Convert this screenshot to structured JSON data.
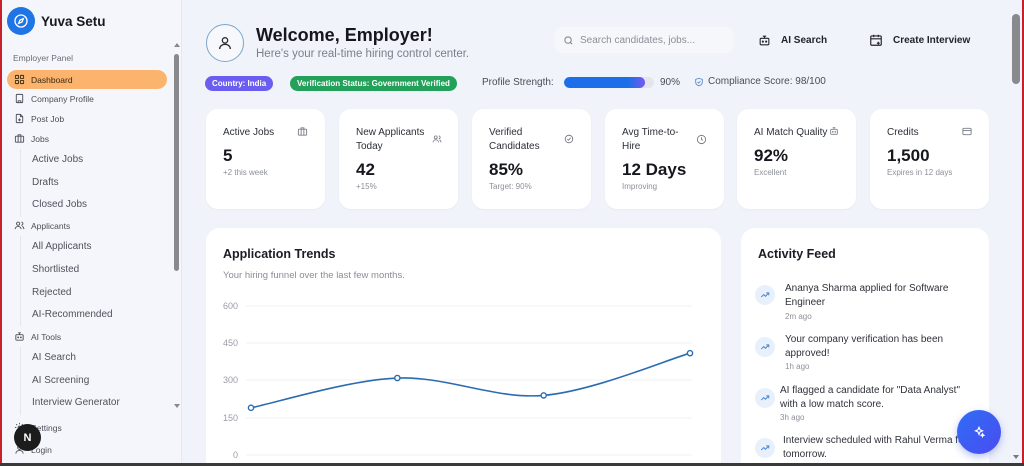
{
  "app": {
    "name": "Yuva Setu",
    "logo_icon": "compass-icon"
  },
  "sidebar": {
    "section_label": "Employer Panel",
    "items": [
      {
        "label": "Dashboard",
        "icon": "grid-icon",
        "active": true
      },
      {
        "label": "Company Profile",
        "icon": "building-icon"
      },
      {
        "label": "Post Job",
        "icon": "file-plus-icon"
      },
      {
        "label": "Jobs",
        "icon": "briefcase-icon"
      },
      {
        "label": "Applicants",
        "icon": "users-icon"
      },
      {
        "label": "AI Tools",
        "icon": "bot-icon"
      },
      {
        "label": "Settings",
        "icon": "gear-icon"
      },
      {
        "label": "Login",
        "icon": "user-icon"
      }
    ],
    "jobs_sub": [
      "Active Jobs",
      "Drafts",
      "Closed Jobs"
    ],
    "applicants_sub": [
      "All Applicants",
      "Shortlisted",
      "Rejected",
      "AI-Recommended"
    ],
    "ai_tools_sub": [
      "AI Search",
      "AI Screening",
      "Interview Generator"
    ],
    "dev_badge": "N"
  },
  "header": {
    "title": "Welcome, Employer!",
    "subtitle": "Here's your real-time hiring control center.",
    "search_placeholder": "Search candidates, jobs...",
    "ai_search_label": "AI Search",
    "create_interview_label": "Create Interview",
    "country_chip": "Country: India",
    "verification_chip": "Verification Status: Government Verified",
    "profile_strength_label": "Profile Strength:",
    "profile_strength_value": "90%",
    "profile_strength_pct": 90,
    "compliance": "Compliance Score: 98/100"
  },
  "stats": [
    {
      "title": "Active Jobs",
      "value": "5",
      "sub": "+2 this week",
      "icon": "briefcase-icon"
    },
    {
      "title": "New Applicants Today",
      "value": "42",
      "sub": "+15%",
      "icon": "users-icon"
    },
    {
      "title": "Verified Candidates",
      "value": "85%",
      "sub": "Target: 90%",
      "icon": "check-circle-icon"
    },
    {
      "title": "Avg Time-to-Hire",
      "value": "12 Days",
      "sub": "Improving",
      "icon": "clock-icon"
    },
    {
      "title": "AI Match Quality",
      "value": "92%",
      "sub": "Excellent",
      "icon": "bot-icon"
    },
    {
      "title": "Credits",
      "value": "1,500",
      "sub": "Expires in 12 days",
      "icon": "credit-card-icon"
    }
  ],
  "chart": {
    "title": "Application Trends",
    "subtitle": "Your hiring funnel over the last few months."
  },
  "chart_data": {
    "type": "line",
    "title": "Application Trends",
    "subtitle": "Your hiring funnel over the last few months.",
    "x": [
      1,
      2,
      3,
      4
    ],
    "series": [
      {
        "name": "Applications",
        "values": [
          190,
          310,
          240,
          410
        ],
        "color": "#2b6cb0"
      }
    ],
    "yticks": [
      0,
      150,
      300,
      450,
      600
    ],
    "ylim": [
      0,
      600
    ],
    "xlabel": "",
    "ylabel": "",
    "grid": true,
    "smooth": true
  },
  "feed": {
    "title": "Activity Feed",
    "items": [
      {
        "text": "Ananya Sharma applied for Software Engineer",
        "time": "2m ago"
      },
      {
        "text": "Your company verification has been approved!",
        "time": "1h ago"
      },
      {
        "text": "AI flagged a candidate for \"Data Analyst\" with a low match score.",
        "time": "3h ago"
      },
      {
        "text": "Interview scheduled with Rahul Verma for tomorrow.",
        "time": ""
      }
    ]
  },
  "colors": {
    "accent_active": "#fbb36e",
    "brand_blue": "#1f74e6",
    "country_chip": "#6b5df0",
    "verify_chip": "#23a05a",
    "line": "#2b6cb0"
  }
}
